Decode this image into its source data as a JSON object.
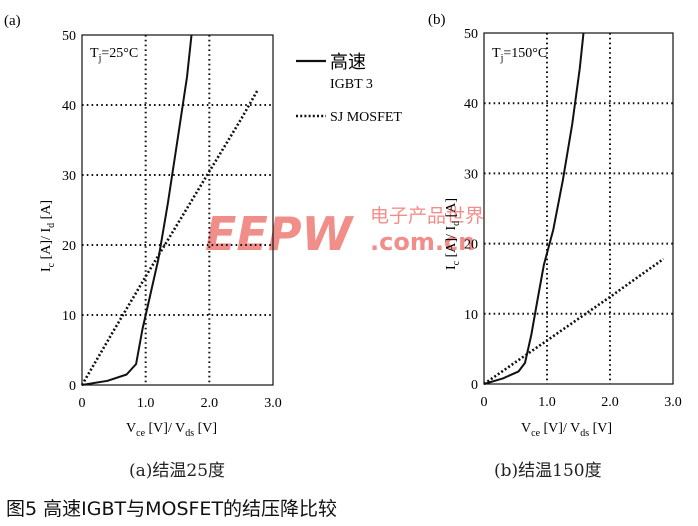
{
  "figure": {
    "caption": "图5 高速IGBT与MOSFET的结压降比较",
    "watermark": {
      "main": "EEPW",
      "sub": ".com.cn",
      "cn": "电子产品世界"
    }
  },
  "colors": {
    "line": "#111111",
    "grid": "#111111",
    "watermark": "#e8322b"
  },
  "chart_data": [
    {
      "type": "line",
      "panel_label": "(a)",
      "annotation": "T",
      "annotation_sub": "j",
      "annotation_rest": "=25°C",
      "caption": "(a)结温25度",
      "xlabel": "V",
      "xlabel_sub1": "ce",
      "xlabel_mid": " [V]/ V",
      "xlabel_sub2": "ds",
      "xlabel_end": " [V]",
      "ylabel": "I",
      "ylabel_sub1": "c",
      "ylabel_mid": " [A]/ I",
      "ylabel_sub2": "d",
      "ylabel_end": " [A]",
      "xlim": [
        0,
        3.0
      ],
      "ylim": [
        0,
        50
      ],
      "xticks": [
        "0",
        "1.0",
        "2.0",
        "3.0"
      ],
      "xtick_values": [
        0,
        1,
        2,
        3
      ],
      "yticks": [
        "0",
        "10",
        "20",
        "30",
        "40",
        "50"
      ],
      "ytick_values": [
        0,
        10,
        20,
        30,
        40,
        50
      ],
      "grid": "dotted",
      "legend": [
        {
          "name": "高速",
          "name2": "IGBT 3",
          "style": "solid"
        },
        {
          "name": "SJ MOSFET",
          "style": "dotted"
        }
      ],
      "series": [
        {
          "style": "solid",
          "x": [
            0,
            0.4,
            0.7,
            0.85,
            0.95,
            1.05,
            1.2,
            1.35,
            1.5,
            1.65,
            1.72
          ],
          "y": [
            0,
            0.6,
            1.5,
            3,
            8,
            12,
            18,
            26,
            35,
            44,
            50
          ]
        },
        {
          "style": "dotted",
          "x": [
            0,
            0.5,
            1.0,
            1.5,
            2.0,
            2.5,
            2.75
          ],
          "y": [
            0,
            7.8,
            15.5,
            23,
            30.5,
            38,
            42
          ]
        }
      ]
    },
    {
      "type": "line",
      "panel_label": "(b)",
      "annotation": "T",
      "annotation_sub": "j",
      "annotation_rest": "=150°C",
      "caption": "(b)结温150度",
      "xlabel": "V",
      "xlabel_sub1": "ce",
      "xlabel_mid": " [V]/ V",
      "xlabel_sub2": "ds",
      "xlabel_end": " [V]",
      "ylabel": "I",
      "ylabel_sub1": "c",
      "ylabel_mid": " [A]/ I",
      "ylabel_sub2": "d",
      "ylabel_end": " [A]",
      "xlim": [
        0,
        3.0
      ],
      "ylim": [
        0,
        50
      ],
      "xticks": [
        "0",
        "1.0",
        "2.0",
        "3.0"
      ],
      "xtick_values": [
        0,
        1,
        2,
        3
      ],
      "yticks": [
        "0",
        "10",
        "20",
        "30",
        "40",
        "50"
      ],
      "ytick_values": [
        0,
        10,
        20,
        30,
        40,
        50
      ],
      "grid": "dotted",
      "series": [
        {
          "style": "solid",
          "x": [
            0,
            0.3,
            0.55,
            0.65,
            0.75,
            0.85,
            0.95,
            1.1,
            1.25,
            1.4,
            1.52,
            1.58
          ],
          "y": [
            0,
            0.8,
            1.8,
            3,
            7,
            12,
            17,
            22,
            29,
            37,
            45,
            50
          ]
        },
        {
          "style": "dotted",
          "x": [
            0,
            0.5,
            1.0,
            1.5,
            2.0,
            2.5,
            2.85
          ],
          "y": [
            0,
            3.1,
            6.2,
            9.3,
            12.4,
            15.6,
            17.8
          ]
        }
      ]
    }
  ]
}
